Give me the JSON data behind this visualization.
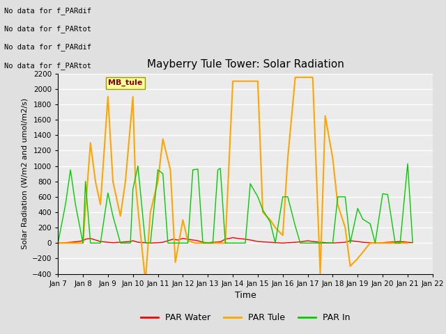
{
  "title": "Mayberry Tule Tower: Solar Radiation",
  "xlabel": "Time",
  "ylabel": "Solar Radiation (W/m2 and umol/m2/s)",
  "ylim": [
    -400,
    2200
  ],
  "yticks": [
    -400,
    -200,
    0,
    200,
    400,
    600,
    800,
    1000,
    1200,
    1400,
    1600,
    1800,
    2000,
    2200
  ],
  "xticklabels": [
    "Jan 7",
    "Jan 8",
    "Jan 9",
    "Jan 10",
    "Jan 11",
    "Jan 12",
    "Jan 13",
    "Jan 14",
    "Jan 15",
    "Jan 16",
    "Jan 17",
    "Jan 18",
    "Jan 19",
    "Jan 20",
    "Jan 21",
    "Jan 22"
  ],
  "no_data_texts": [
    "No data for f_PARdif",
    "No data for f_PARtot",
    "No data for f_PARdif",
    "No data for f_PARtot"
  ],
  "annotation_box": "MB_tule",
  "legend_labels": [
    "PAR Water",
    "PAR Tule",
    "PAR In"
  ],
  "legend_colors": [
    "#ff0000",
    "#ffa500",
    "#00cc00"
  ],
  "bg_color": "#e0e0e0",
  "plot_bg_color": "#ebebeb",
  "grid_color": "#ffffff",
  "par_water": {
    "color": "#ff0000",
    "x": [
      7,
      7.3,
      7.5,
      7.8,
      8,
      8.1,
      8.3,
      8.5,
      8.7,
      9,
      9.2,
      9.5,
      9.7,
      9.9,
      10,
      10.2,
      10.5,
      10.7,
      11,
      11.2,
      11.4,
      11.6,
      11.8,
      12,
      12.2,
      12.4,
      12.6,
      12.8,
      13,
      13.2,
      13.5,
      13.7,
      14,
      14.2,
      14.5,
      14.7,
      15,
      15.2,
      15.5,
      15.7,
      16,
      16.2,
      16.5,
      16.7,
      17,
      17.2,
      17.5,
      17.7,
      18,
      18.2,
      18.5,
      18.7,
      19,
      19.2,
      19.5,
      19.7,
      20,
      20.2,
      20.5,
      20.7,
      21,
      21.2
    ],
    "y": [
      0,
      5,
      10,
      20,
      30,
      50,
      60,
      40,
      20,
      10,
      5,
      10,
      15,
      20,
      30,
      10,
      5,
      0,
      5,
      10,
      30,
      50,
      40,
      60,
      50,
      40,
      30,
      10,
      5,
      10,
      15,
      50,
      70,
      60,
      50,
      40,
      20,
      15,
      10,
      5,
      0,
      5,
      10,
      15,
      30,
      20,
      10,
      5,
      0,
      5,
      10,
      30,
      20,
      10,
      5,
      0,
      5,
      10,
      15,
      20,
      10,
      5
    ]
  },
  "par_tule": {
    "color": "#ffa500",
    "x": [
      7,
      7.5,
      8,
      8.3,
      8.5,
      8.7,
      9,
      9.2,
      9.5,
      9.7,
      10,
      10.1,
      10.2,
      10.5,
      10.7,
      11,
      11.2,
      11.5,
      11.7,
      12,
      12.2,
      12.5,
      12.7,
      13,
      13.2,
      13.5,
      13.7,
      14,
      14.2,
      14.5,
      14.7,
      15,
      15.2,
      15.5,
      15.7,
      16,
      16.2,
      16.5,
      16.7,
      17,
      17.2,
      17.5,
      17.7,
      18,
      18.2,
      18.5,
      18.7,
      19,
      19.5,
      20,
      20.5,
      21
    ],
    "y": [
      0,
      0,
      0,
      1300,
      800,
      500,
      1900,
      800,
      350,
      800,
      1900,
      800,
      450,
      -500,
      400,
      800,
      1350,
      950,
      -250,
      300,
      30,
      0,
      0,
      0,
      0,
      0,
      0,
      2100,
      2100,
      2100,
      2100,
      2100,
      400,
      300,
      200,
      100,
      1100,
      2150,
      2150,
      2150,
      2150,
      -400,
      1650,
      1100,
      500,
      200,
      -300,
      -200,
      0,
      0,
      0,
      0
    ]
  },
  "par_in": {
    "color": "#00cc00",
    "x": [
      7,
      7.3,
      7.5,
      7.7,
      8,
      8.1,
      8.3,
      8.5,
      8.7,
      9,
      9.2,
      9.5,
      9.7,
      9.9,
      10,
      10.2,
      10.5,
      10.7,
      11,
      11.2,
      11.4,
      11.6,
      11.8,
      12,
      12.2,
      12.4,
      12.6,
      12.8,
      13,
      13.2,
      13.4,
      13.5,
      13.7,
      14,
      14.2,
      14.5,
      14.7,
      15,
      15.2,
      15.5,
      15.7,
      16,
      16.2,
      16.5,
      16.7,
      17,
      17.2,
      17.5,
      17.7,
      18,
      18.2,
      18.5,
      18.7,
      19,
      19.2,
      19.5,
      19.7,
      20,
      20.2,
      20.5,
      20.7,
      21,
      21.2
    ],
    "y": [
      0,
      500,
      950,
      500,
      0,
      800,
      0,
      0,
      0,
      650,
      350,
      0,
      0,
      0,
      700,
      1000,
      0,
      0,
      950,
      900,
      0,
      0,
      0,
      0,
      0,
      950,
      960,
      0,
      0,
      0,
      950,
      970,
      0,
      0,
      0,
      0,
      770,
      600,
      430,
      270,
      0,
      600,
      600,
      220,
      0,
      0,
      0,
      0,
      0,
      0,
      600,
      600,
      0,
      450,
      310,
      250,
      0,
      640,
      630,
      0,
      0,
      1030,
      10
    ]
  }
}
